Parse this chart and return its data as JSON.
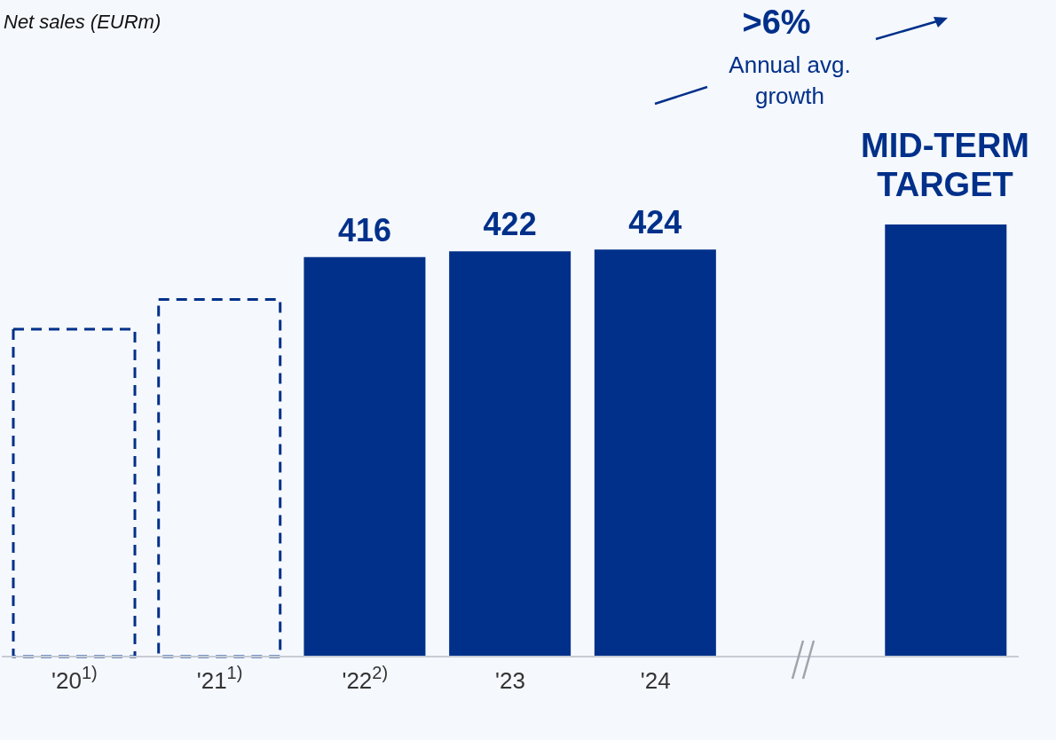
{
  "chart_data": {
    "type": "bar",
    "title": "Net sales (EURm)",
    "categories": [
      "'20$^{1)}$",
      "'21$^{1)}$",
      "'22$^{2)}$",
      "'23",
      "'24",
      null,
      null
    ],
    "series": [
      {
        "color": "#00308a",
        "line_style": "dashed",
        "values": [
          341,
          372,
          null,
          null,
          null,
          null,
          null
        ],
        "value_labels": [
          null,
          null,
          null,
          null,
          null,
          null,
          null
        ]
      },
      {
        "color": "#00308a",
        "values": [
          null,
          null,
          416,
          422,
          424,
          null,
          null
        ],
        "value_labels": [
          null,
          null,
          "416",
          "422",
          "424",
          null,
          null
        ]
      },
      {
        "color": "#00308a",
        "values": [
          null,
          null,
          null,
          null,
          null,
          null,
          450
        ],
        "value_labels": [
          null,
          null,
          null,
          null,
          null,
          null,
          null
        ]
      }
    ],
    "annotations": [
      ">6%",
      "Annual avg. growth",
      "MID-TERM TARGET"
    ],
    "legend": false
  }
}
